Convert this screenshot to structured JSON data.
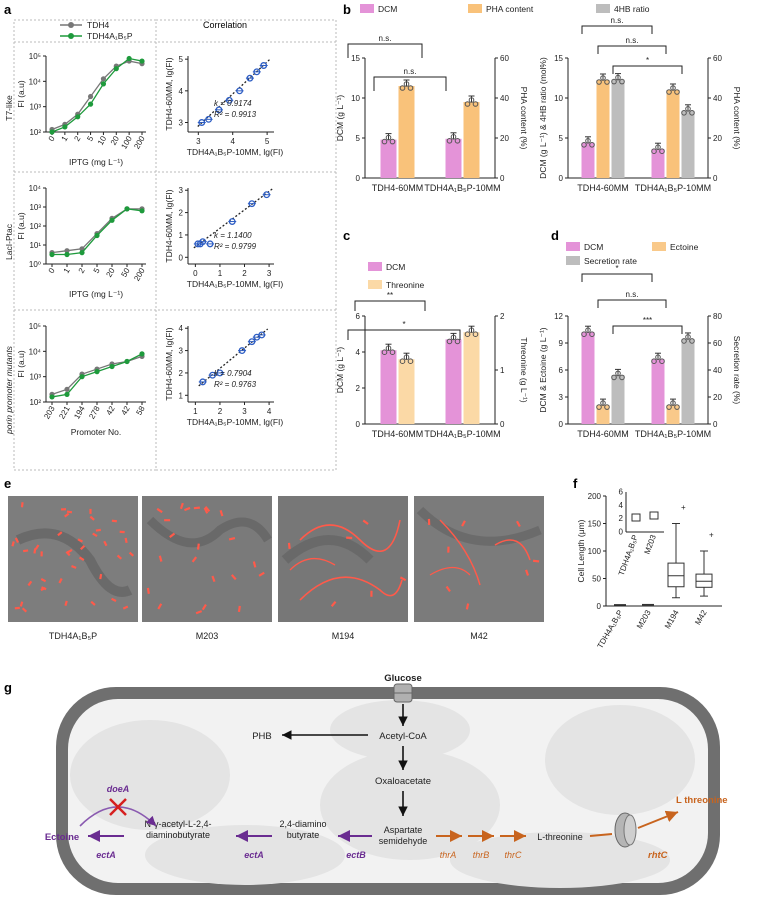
{
  "figure": {
    "panel_labels": {
      "a": "a",
      "b": "b",
      "c": "c",
      "d": "d",
      "e": "e",
      "f": "f",
      "g": "g"
    },
    "colors": {
      "dcm": "#e493d8",
      "pha": "#f9c27a",
      "ratio": "#bdbdbd",
      "thr": "#fbd9a6",
      "ectoine": "#f9c98a",
      "purple": "#6a2c91",
      "orange": "#c8641e",
      "blue": "#2e5ec4",
      "green": "#1e9a3c"
    },
    "panel_a": {
      "legend": [
        "TDH4",
        "TDH4A₁B₅P"
      ],
      "correlation_title": "Correlation",
      "rows": [
        {
          "label": "T7-like",
          "xlabel": "IPTG (mg L⁻¹)",
          "ylabel": "FI (a.u)",
          "yticks": [
            "10²",
            "10³",
            "10⁴",
            "10⁵"
          ],
          "xticks": [
            "0",
            "1",
            "2",
            "5",
            "10",
            "20",
            "100",
            "200"
          ],
          "tdh4": [
            2.1,
            2.3,
            2.7,
            3.4,
            4.1,
            4.6,
            4.8,
            4.7
          ],
          "tdh4a": [
            2.0,
            2.2,
            2.6,
            3.1,
            3.9,
            4.5,
            4.9,
            4.8
          ],
          "corr_ylabel": "TDH4-60MM, lg(FI)",
          "corr_xlabel": "TDH4A₁B₅P-10MM, lg(FI)",
          "corr_yticks": [
            "3",
            "4",
            "5"
          ],
          "corr_xticks": [
            "3",
            "4",
            "5"
          ],
          "k": "k = 0.9174",
          "r2": "R² = 0.9913",
          "corr_x": [
            3.1,
            3.3,
            3.6,
            3.9,
            4.2,
            4.5,
            4.7,
            4.9
          ],
          "corr_y": [
            3.0,
            3.1,
            3.4,
            3.7,
            4.0,
            4.4,
            4.6,
            4.8
          ]
        },
        {
          "label": "LacI-Ptac",
          "xlabel": "IPTG (mg L⁻¹)",
          "ylabel": "FI (a.u)",
          "yticks": [
            "10⁰",
            "10¹",
            "10²",
            "10³",
            "10⁴"
          ],
          "xticks": [
            "0",
            "1",
            "2",
            "5",
            "20",
            "50",
            "200"
          ],
          "tdh4": [
            0.6,
            0.7,
            0.8,
            1.6,
            2.4,
            2.9,
            2.9
          ],
          "tdh4a": [
            0.5,
            0.5,
            0.6,
            1.5,
            2.3,
            2.9,
            2.8
          ],
          "corr_ylabel": "TDH4-60MM, lg(FI)",
          "corr_xlabel": "TDH4A₁B₅P-10MM, lg(FI)",
          "corr_yticks": [
            "0",
            "1",
            "2",
            "3"
          ],
          "corr_xticks": [
            "0",
            "1",
            "2",
            "3"
          ],
          "k": "k = 1.1400",
          "r2": "R² = 0.9799",
          "corr_x": [
            0.1,
            0.2,
            0.3,
            0.6,
            1.5,
            2.3,
            2.9
          ],
          "corr_y": [
            0.6,
            0.6,
            0.7,
            0.6,
            1.6,
            2.4,
            2.8
          ]
        },
        {
          "label": "porin promoter mutants",
          "xlabel": "Promoter No.",
          "ylabel": "FI (a.u)",
          "yticks": [
            "10²",
            "10³",
            "10⁴",
            "10⁵"
          ],
          "xticks": [
            "203",
            "221",
            "194",
            "278",
            "42",
            "42",
            "58"
          ],
          "tdh4": [
            2.3,
            2.5,
            3.1,
            3.3,
            3.5,
            3.6,
            3.8
          ],
          "tdh4a": [
            2.2,
            2.3,
            3.0,
            3.2,
            3.4,
            3.6,
            3.9
          ],
          "corr_ylabel": "TDH4-60MM, lg(FI)",
          "corr_xlabel": "TDH4A₁B₅P-10MM, lg(FI)",
          "corr_yticks": [
            "1",
            "2",
            "3",
            "4"
          ],
          "corr_xticks": [
            "1",
            "2",
            "3",
            "4"
          ],
          "k": "k = 0.7904",
          "r2": "R² = 0.9763",
          "corr_x": [
            1.3,
            1.7,
            2.0,
            2.9,
            3.3,
            3.5,
            3.7
          ],
          "corr_y": [
            1.6,
            1.9,
            2.0,
            3.0,
            3.4,
            3.6,
            3.7
          ]
        }
      ]
    },
    "panel_b": {
      "legend": [
        "DCM",
        "PHA content",
        "4HB ratio"
      ],
      "left": {
        "ylabel": "DCM (g L⁻¹)",
        "y2label": "PHA content (%)",
        "categories": [
          "TDH4-60MM",
          "TDH4A₁B₅P-10MM"
        ],
        "dcm": [
          4.8,
          4.9
        ],
        "pha": [
          46,
          38
        ],
        "yticks": [
          "0",
          "5",
          "10",
          "15"
        ],
        "y2ticks": [
          "0",
          "20",
          "40",
          "60"
        ],
        "sig": [
          "n.s.",
          "n.s."
        ]
      },
      "right": {
        "ylabel": "DCM (g L⁻¹) & 4HB ratio (mol%)",
        "y2label": "PHA content (%)",
        "categories": [
          "TDH4-60MM",
          "TDH4A₁B₅P-10MM"
        ],
        "dcm": [
          4.4,
          3.6
        ],
        "pha": [
          49,
          44
        ],
        "ratio": [
          12.3,
          8.4
        ],
        "yticks": [
          "0",
          "5",
          "10",
          "15"
        ],
        "y2ticks": [
          "0",
          "20",
          "40",
          "60"
        ],
        "sig": [
          "n.s.",
          "n.s.",
          "*"
        ]
      }
    },
    "panel_c": {
      "legend": [
        "DCM",
        "Threonine"
      ],
      "ylabel": "DCM (g L⁻¹)",
      "y2label": "Threonine (g L⁻¹)",
      "categories": [
        "TDH4-60MM",
        "TDH4A₁B₅P-10MM"
      ],
      "dcm": [
        4.1,
        4.7
      ],
      "thr": [
        1.2,
        1.7
      ],
      "yticks": [
        "0",
        "2",
        "4",
        "6"
      ],
      "y2ticks": [
        "0",
        "1",
        "2"
      ],
      "sig": [
        "**",
        "*"
      ]
    },
    "panel_d": {
      "legend": [
        "DCM",
        "Ectoine",
        "Secretion rate"
      ],
      "ylabel": "DCM & Ectoine (g L⁻¹)",
      "y2label": "Secretion rate (%)",
      "categories": [
        "TDH4-60MM",
        "TDH4A₁B₅P-10MM"
      ],
      "dcm": [
        10.2,
        7.2
      ],
      "ectoine": [
        2.1,
        2.1
      ],
      "secretion": [
        36,
        63
      ],
      "yticks": [
        "0",
        "3",
        "6",
        "9",
        "12"
      ],
      "y2ticks": [
        "0",
        "20",
        "40",
        "60",
        "80"
      ],
      "sig": [
        "*",
        "n.s.",
        "***"
      ]
    },
    "panel_e": {
      "captions": [
        "TDH4A₁B₅P",
        "M203",
        "M194",
        "M42"
      ]
    },
    "panel_f": {
      "ylabel": "Cell Length (μm)",
      "yticks": [
        "0",
        "50",
        "100",
        "150",
        "200"
      ],
      "categories": [
        "TDH4A₁B₅P",
        "M203",
        "M194",
        "M42"
      ],
      "inset_categories": [
        "TDH4A₁B₅P",
        "M203"
      ],
      "inset_yticks": [
        "0",
        "2",
        "4",
        "6"
      ],
      "medians": [
        2.1,
        2.4,
        55,
        45
      ]
    },
    "panel_g": {
      "glucose": "Glucose",
      "phb": "PHB",
      "acetyl_coa": "Acetyl-CoA",
      "oxaloacetate": "Oxaloacetate",
      "aspartate": [
        "Aspartate",
        "semidehyde"
      ],
      "diamino": [
        "2,4-diamino",
        "butyrate"
      ],
      "acetyl_diamino": [
        "N-γ-acetyl-L-2,4-",
        "diaminobutyrate"
      ],
      "ectoine": "Ectoine",
      "doea": "doeA",
      "ectA1": "ectA",
      "ectA2": "ectA",
      "ectB": "ectB",
      "thrA": "thrA",
      "thrB": "thrB",
      "thrC": "thrC",
      "l_threonine": "L-threonine",
      "l_threonine_out": "L threonine",
      "rhtC": "rhtC"
    }
  }
}
